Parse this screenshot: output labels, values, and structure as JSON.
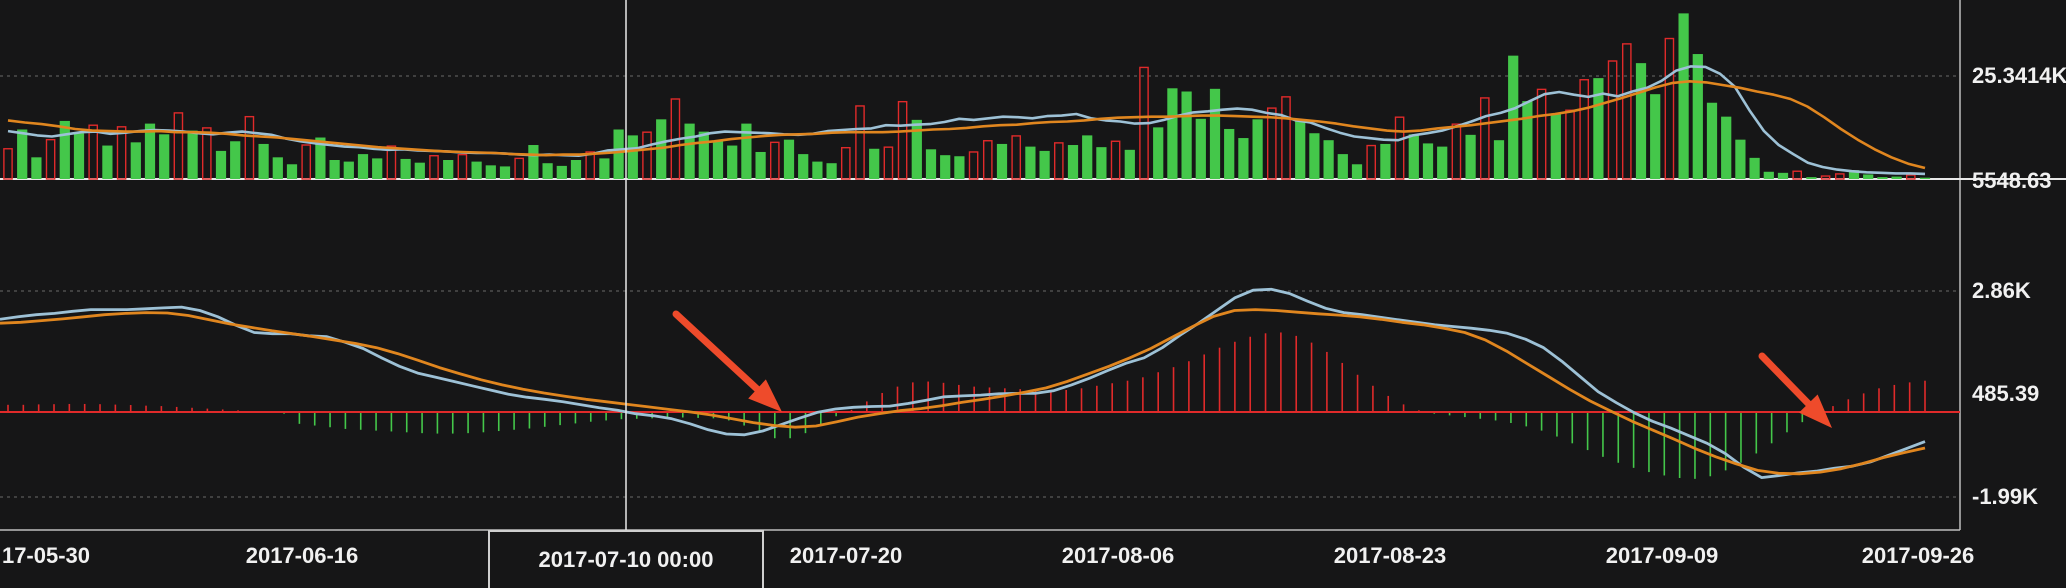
{
  "chart_data": [
    {
      "type": "bar",
      "panel": "volume",
      "description_source": "volume bars with two moving average lines",
      "y_ticks": [
        "25.3414K",
        "5548.63"
      ],
      "ylim": [
        5548.63,
        39000
      ],
      "grid": true,
      "series": [
        {
          "style": "bars",
          "color_up": "#e02a2a",
          "color_down": "#44c74a",
          "values": [
            11200,
            14800,
            9600,
            12900,
            16400,
            14100,
            15600,
            11800,
            15300,
            12400,
            15900,
            13900,
            17900,
            14600,
            15100,
            10800,
            12600,
            17200,
            12100,
            9600,
            8300,
            11900,
            13300,
            9100,
            8800,
            10200,
            9400,
            11700,
            9300,
            8600,
            9900,
            9100,
            10100,
            8800,
            8100,
            7900,
            9400,
            11900,
            8500,
            8000,
            9100,
            10600,
            9400,
            14800,
            13700,
            14300,
            16700,
            20500,
            15900,
            14400,
            12700,
            11800,
            15900,
            10600,
            12400,
            12900,
            10200,
            8800,
            8500,
            11400,
            19200,
            11200,
            11500,
            20000,
            16600,
            11100,
            10000,
            9800,
            10600,
            12700,
            12100,
            13600,
            11600,
            10800,
            12300,
            11900,
            13700,
            11500,
            12600,
            11000,
            26400,
            15200,
            22500,
            21900,
            16800,
            22400,
            14900,
            13200,
            16700,
            18800,
            20900,
            16700,
            14100,
            12800,
            10200,
            8300,
            11800,
            12100,
            17100,
            13900,
            12200,
            11600,
            15800,
            13800,
            20700,
            12800,
            28600,
            20100,
            22300,
            17800,
            18400,
            24100,
            24400,
            27600,
            30800,
            27200,
            21400,
            31800,
            36500,
            28900,
            19800,
            17200,
            12900,
            9500,
            6900,
            6700,
            7000,
            5900,
            6100,
            6500,
            7200,
            6400,
            5900,
            6000,
            6300,
            5800
          ]
        },
        {
          "name": "",
          "style": "line",
          "color": "#9dc1d6",
          "values": [
            14500,
            14100,
            13700,
            13500,
            13900,
            14300,
            14400,
            14000,
            14200,
            14500,
            14700,
            14600,
            14400,
            14100,
            13900,
            14200,
            14400,
            14100,
            13800,
            13100,
            12600,
            12200,
            11900,
            11600,
            11500,
            11200,
            11000,
            11100,
            10900,
            10800,
            10700,
            10500,
            10400,
            10400,
            10300,
            10100,
            10000,
            10100,
            10000,
            9900,
            10300,
            10900,
            11100,
            11300,
            12000,
            12600,
            13100,
            13500,
            14100,
            14400,
            14300,
            14200,
            14100,
            13900,
            13800,
            14000,
            14500,
            14700,
            14900,
            15000,
            15600,
            15500,
            15700,
            15800,
            16200,
            16800,
            16600,
            16900,
            17200,
            17100,
            16900,
            17300,
            17400,
            17700,
            16900,
            16500,
            16300,
            15900,
            16000,
            16600,
            17400,
            18000,
            18200,
            18500,
            18700,
            18500,
            17900,
            17500,
            16500,
            16100,
            15100,
            14200,
            13500,
            13200,
            12900,
            12800,
            13700,
            14100,
            14600,
            15400,
            16300,
            17300,
            17900,
            18800,
            20100,
            21400,
            21800,
            21300,
            20900,
            21500,
            21000,
            21900,
            22600,
            23900,
            25800,
            26600,
            26500,
            25200,
            22800,
            18400,
            14500,
            11900,
            10200,
            8600,
            7800,
            7300,
            7000,
            6800,
            6700,
            6600,
            6600,
            6500
          ]
        },
        {
          "name": "",
          "style": "line",
          "color": "#e0861f",
          "values": [
            16500,
            16100,
            15800,
            15400,
            14900,
            14600,
            14500,
            14400,
            14400,
            14500,
            14300,
            14300,
            14200,
            14000,
            13700,
            13500,
            13300,
            13000,
            12700,
            12400,
            12100,
            11800,
            11500,
            11300,
            11100,
            10900,
            10700,
            10600,
            10500,
            10400,
            10200,
            10100,
            10000,
            10100,
            10100,
            10300,
            10500,
            10800,
            11100,
            11400,
            11900,
            12300,
            12600,
            13000,
            13300,
            13600,
            13800,
            13900,
            14000,
            14200,
            14300,
            14300,
            14300,
            14400,
            14600,
            14800,
            14900,
            15100,
            15400,
            15600,
            15700,
            16000,
            16200,
            16300,
            16500,
            16800,
            17000,
            17100,
            17200,
            17200,
            17300,
            17400,
            17400,
            17300,
            17200,
            17100,
            16900,
            16600,
            16300,
            15900,
            15400,
            15000,
            14600,
            14400,
            14600,
            15000,
            15300,
            15600,
            16000,
            16400,
            16800,
            17300,
            17700,
            18200,
            18900,
            19800,
            20700,
            21700,
            22700,
            23500,
            23800,
            23600,
            23100,
            22600,
            21900,
            21300,
            20500,
            19100,
            17100,
            14900,
            12900,
            11100,
            9600,
            8400,
            7600
          ]
        }
      ]
    },
    {
      "type": "line",
      "panel": "macd",
      "description_source": "MACD style oscillator with histogram",
      "y_ticks": [
        "2.86K",
        "485.39",
        "-1.99K"
      ],
      "ylim": [
        -2500,
        3400
      ],
      "grid": true,
      "series": [
        {
          "style": "histogram",
          "color_pos": "#e02a2a",
          "color_neg": "#44c74a",
          "values": [
            170,
            170,
            180,
            185,
            190,
            190,
            185,
            175,
            165,
            150,
            140,
            120,
            100,
            80,
            60,
            40,
            20,
            0,
            -40,
            -280,
            -320,
            -360,
            -400,
            -420,
            -440,
            -460,
            -480,
            -500,
            -510,
            -510,
            -500,
            -480,
            -450,
            -420,
            -390,
            -350,
            -310,
            -270,
            -230,
            -200,
            -170,
            -160,
            -150,
            -140,
            -130,
            -140,
            -150,
            -200,
            -320,
            -480,
            -620,
            -620,
            -500,
            -300,
            -100,
            50,
            250,
            450,
            600,
            700,
            720,
            690,
            640,
            600,
            580,
            560,
            540,
            520,
            500,
            520,
            560,
            620,
            680,
            740,
            820,
            940,
            1060,
            1200,
            1360,
            1520,
            1660,
            1780,
            1860,
            1880,
            1800,
            1640,
            1420,
            1160,
            880,
            620,
            380,
            180,
            40,
            -40,
            -80,
            -120,
            -160,
            -200,
            -260,
            -340,
            -440,
            -580,
            -740,
            -900,
            -1060,
            -1200,
            -1320,
            -1420,
            -1500,
            -1560,
            -1580,
            -1520,
            -1380,
            -1200,
            -980,
            -740,
            -480,
            -240,
            -40,
            140,
            300,
            440,
            560,
            640,
            700,
            740
          ]
        },
        {
          "name": "",
          "style": "line",
          "color": "#9dc1d6",
          "values": [
            2190,
            2250,
            2300,
            2330,
            2380,
            2420,
            2420,
            2420,
            2440,
            2460,
            2480,
            2400,
            2250,
            2050,
            1880,
            1850,
            1850,
            1800,
            1780,
            1650,
            1500,
            1280,
            1080,
            920,
            820,
            720,
            620,
            520,
            420,
            350,
            300,
            240,
            170,
            100,
            40,
            -40,
            -90,
            -160,
            -280,
            -420,
            -520,
            -540,
            -450,
            -300,
            -150,
            -10,
            70,
            110,
            130,
            140,
            200,
            280,
            360,
            380,
            400,
            430,
            440,
            440,
            500,
            640,
            800,
            980,
            1150,
            1280,
            1520,
            1820,
            2100,
            2400,
            2700,
            2880,
            2900,
            2800,
            2620,
            2450,
            2350,
            2300,
            2240,
            2180,
            2120,
            2060,
            2020,
            1980,
            1930,
            1860,
            1720,
            1520,
            1200,
            840,
            480,
            220,
            -20,
            -220,
            -380,
            -560,
            -740,
            -980,
            -1300,
            -1550,
            -1500,
            -1440,
            -1400,
            -1330,
            -1280,
            -1180,
            -1020,
            -860,
            -700
          ]
        },
        {
          "name": "",
          "style": "line",
          "color": "#e0861f",
          "values": [
            2100,
            2120,
            2160,
            2200,
            2250,
            2300,
            2330,
            2350,
            2340,
            2280,
            2180,
            2080,
            2000,
            1920,
            1850,
            1780,
            1700,
            1620,
            1520,
            1380,
            1220,
            1050,
            900,
            760,
            640,
            540,
            450,
            370,
            300,
            240,
            180,
            120,
            60,
            0,
            -70,
            -160,
            -250,
            -320,
            -360,
            -330,
            -230,
            -120,
            -40,
            30,
            80,
            150,
            230,
            300,
            380,
            470,
            570,
            720,
            900,
            1080,
            1280,
            1500,
            1760,
            2020,
            2260,
            2400,
            2420,
            2400,
            2360,
            2320,
            2290,
            2250,
            2190,
            2120,
            2060,
            1980,
            1880,
            1700,
            1440,
            1140,
            840,
            540,
            260,
            20,
            -220,
            -430,
            -640,
            -860,
            -1060,
            -1230,
            -1380,
            -1450,
            -1460,
            -1420,
            -1340,
            -1220,
            -1080,
            -960,
            -850
          ]
        }
      ]
    }
  ],
  "x_axis": {
    "tick_labels": [
      "17-05-30",
      "2017-06-16",
      "2017-07-20",
      "2017-08-06",
      "2017-08-23",
      "2017-09-09",
      "2017-09-26"
    ]
  },
  "crosshair": {
    "label": "2017-07-10 00:00"
  },
  "annotations": {
    "arrow_color": "#ee4b2b"
  },
  "colors": {
    "background": "#161617",
    "up": "#e02a2a",
    "down": "#44c74a",
    "grid": "#5a5a5a",
    "axis_text": "#f1f1f1"
  }
}
